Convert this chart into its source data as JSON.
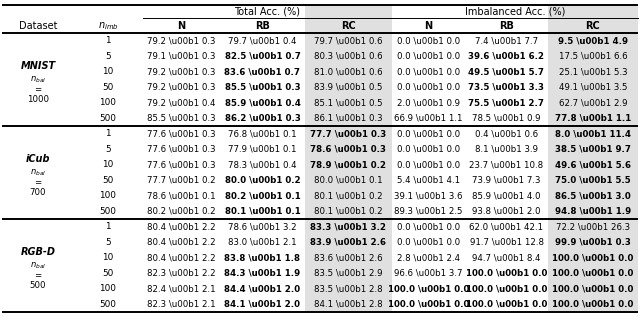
{
  "sections": [
    {
      "label": "MNIST",
      "sublabel_parts": [
        "$n_{bal}$",
        "=",
        "1000"
      ],
      "rows": [
        {
          "nimb": "1",
          "tN": "79.2 \\u00b1 0.3",
          "tRB": "79.7 \\u00b1 0.4",
          "tRC": "79.7 \\u00b1 0.6",
          "iN": "0.0 \\u00b1 0.0",
          "iRB": "7.4 \\u00b1 7.7",
          "iRC": "9.5 \\u00b1 4.9",
          "tN_b": false,
          "tRB_b": false,
          "tRC_b": false,
          "iN_b": false,
          "iRB_b": false,
          "iRC_b": true
        },
        {
          "nimb": "5",
          "tN": "79.1 \\u00b1 0.3",
          "tRB": "82.5 \\u00b1 0.7",
          "tRC": "80.3 \\u00b1 0.6",
          "iN": "0.0 \\u00b1 0.0",
          "iRB": "39.6 \\u00b1 6.2",
          "iRC": "17.5 \\u00b1 6.6",
          "tN_b": false,
          "tRB_b": true,
          "tRC_b": false,
          "iN_b": false,
          "iRB_b": true,
          "iRC_b": false
        },
        {
          "nimb": "10",
          "tN": "79.2 \\u00b1 0.3",
          "tRB": "83.6 \\u00b1 0.7",
          "tRC": "81.0 \\u00b1 0.6",
          "iN": "0.0 \\u00b1 0.0",
          "iRB": "49.5 \\u00b1 5.7",
          "iRC": "25.1 \\u00b1 5.3",
          "tN_b": false,
          "tRB_b": true,
          "tRC_b": false,
          "iN_b": false,
          "iRB_b": true,
          "iRC_b": false
        },
        {
          "nimb": "50",
          "tN": "79.2 \\u00b1 0.3",
          "tRB": "85.5 \\u00b1 0.3",
          "tRC": "83.9 \\u00b1 0.5",
          "iN": "0.0 \\u00b1 0.0",
          "iRB": "73.5 \\u00b1 3.3",
          "iRC": "49.1 \\u00b1 3.5",
          "tN_b": false,
          "tRB_b": true,
          "tRC_b": false,
          "iN_b": false,
          "iRB_b": true,
          "iRC_b": false
        },
        {
          "nimb": "100",
          "tN": "79.2 \\u00b1 0.4",
          "tRB": "85.9 \\u00b1 0.4",
          "tRC": "85.1 \\u00b1 0.5",
          "iN": "2.0 \\u00b1 0.9",
          "iRB": "75.5 \\u00b1 2.7",
          "iRC": "62.7 \\u00b1 2.9",
          "tN_b": false,
          "tRB_b": true,
          "tRC_b": false,
          "iN_b": false,
          "iRB_b": true,
          "iRC_b": false
        },
        {
          "nimb": "500",
          "tN": "85.5 \\u00b1 0.3",
          "tRB": "86.2 \\u00b1 0.3",
          "tRC": "86.1 \\u00b1 0.3",
          "iN": "66.9 \\u00b1 1.1",
          "iRB": "78.5 \\u00b1 0.9",
          "iRC": "77.8 \\u00b1 1.1",
          "tN_b": false,
          "tRB_b": true,
          "tRC_b": false,
          "iN_b": false,
          "iRB_b": false,
          "iRC_b": true
        }
      ]
    },
    {
      "label": "iCub",
      "sublabel_parts": [
        "$n_{bal}$",
        "=",
        "700"
      ],
      "rows": [
        {
          "nimb": "1",
          "tN": "77.6 \\u00b1 0.3",
          "tRB": "76.8 \\u00b1 0.1",
          "tRC": "77.7 \\u00b1 0.3",
          "iN": "0.0 \\u00b1 0.0",
          "iRB": "0.4 \\u00b1 0.6",
          "iRC": "8.0 \\u00b1 11.4",
          "tN_b": false,
          "tRB_b": false,
          "tRC_b": true,
          "iN_b": false,
          "iRB_b": false,
          "iRC_b": true
        },
        {
          "nimb": "5",
          "tN": "77.6 \\u00b1 0.3",
          "tRB": "77.9 \\u00b1 0.1",
          "tRC": "78.6 \\u00b1 0.3",
          "iN": "0.0 \\u00b1 0.0",
          "iRB": "8.1 \\u00b1 3.9",
          "iRC": "38.5 \\u00b1 9.7",
          "tN_b": false,
          "tRB_b": false,
          "tRC_b": true,
          "iN_b": false,
          "iRB_b": false,
          "iRC_b": true
        },
        {
          "nimb": "10",
          "tN": "77.6 \\u00b1 0.3",
          "tRB": "78.3 \\u00b1 0.4",
          "tRC": "78.9 \\u00b1 0.2",
          "iN": "0.0 \\u00b1 0.0",
          "iRB": "23.7 \\u00b1 10.8",
          "iRC": "49.6 \\u00b1 5.6",
          "tN_b": false,
          "tRB_b": false,
          "tRC_b": true,
          "iN_b": false,
          "iRB_b": false,
          "iRC_b": true
        },
        {
          "nimb": "50",
          "tN": "77.7 \\u00b1 0.2",
          "tRB": "80.0 \\u00b1 0.2",
          "tRC": "80.0 \\u00b1 0.1",
          "iN": "5.4 \\u00b1 4.1",
          "iRB": "73.9 \\u00b1 7.3",
          "iRC": "75.0 \\u00b1 5.5",
          "tN_b": false,
          "tRB_b": true,
          "tRC_b": false,
          "iN_b": false,
          "iRB_b": false,
          "iRC_b": true
        },
        {
          "nimb": "100",
          "tN": "78.6 \\u00b1 0.1",
          "tRB": "80.2 \\u00b1 0.1",
          "tRC": "80.1 \\u00b1 0.2",
          "iN": "39.1 \\u00b1 3.6",
          "iRB": "85.9 \\u00b1 4.0",
          "iRC": "86.5 \\u00b1 3.0",
          "tN_b": false,
          "tRB_b": true,
          "tRC_b": false,
          "iN_b": false,
          "iRB_b": false,
          "iRC_b": true
        },
        {
          "nimb": "500",
          "tN": "80.2 \\u00b1 0.2",
          "tRB": "80.1 \\u00b1 0.1",
          "tRC": "80.1 \\u00b1 0.2",
          "iN": "89.3 \\u00b1 2.5",
          "iRB": "93.8 \\u00b1 2.0",
          "iRC": "94.8 \\u00b1 1.9",
          "tN_b": false,
          "tRB_b": true,
          "tRC_b": false,
          "iN_b": false,
          "iRB_b": false,
          "iRC_b": true
        }
      ]
    },
    {
      "label": "RGB-D",
      "sublabel_parts": [
        "$n_{bal}$",
        "=",
        "500"
      ],
      "rows": [
        {
          "nimb": "1",
          "tN": "80.4 \\u00b1 2.2",
          "tRB": "78.6 \\u00b1 3.2",
          "tRC": "83.3 \\u00b1 3.2",
          "iN": "0.0 \\u00b1 0.0",
          "iRB": "62.0 \\u00b1 42.1",
          "iRC": "72.2 \\u00b1 26.3",
          "tN_b": false,
          "tRB_b": false,
          "tRC_b": true,
          "iN_b": false,
          "iRB_b": false,
          "iRC_b": false
        },
        {
          "nimb": "5",
          "tN": "80.4 \\u00b1 2.2",
          "tRB": "83.0 \\u00b1 2.1",
          "tRC": "83.9 \\u00b1 2.6",
          "iN": "0.0 \\u00b1 0.0",
          "iRB": "91.7 \\u00b1 12.8",
          "iRC": "99.9 \\u00b1 0.3",
          "tN_b": false,
          "tRB_b": false,
          "tRC_b": true,
          "iN_b": false,
          "iRB_b": false,
          "iRC_b": true
        },
        {
          "nimb": "10",
          "tN": "80.4 \\u00b1 2.2",
          "tRB": "83.8 \\u00b1 1.8",
          "tRC": "83.6 \\u00b1 2.6",
          "iN": "2.8 \\u00b1 2.4",
          "iRB": "94.7 \\u00b1 8.4",
          "iRC": "100.0 \\u00b1 0.0",
          "tN_b": false,
          "tRB_b": true,
          "tRC_b": false,
          "iN_b": false,
          "iRB_b": false,
          "iRC_b": true
        },
        {
          "nimb": "50",
          "tN": "82.3 \\u00b1 2.2",
          "tRB": "84.3 \\u00b1 1.9",
          "tRC": "83.5 \\u00b1 2.9",
          "iN": "96.6 \\u00b1 3.7",
          "iRB": "100.0 \\u00b1 0.0",
          "iRC": "100.0 \\u00b1 0.0",
          "tN_b": false,
          "tRB_b": true,
          "tRC_b": false,
          "iN_b": false,
          "iRB_b": true,
          "iRC_b": true
        },
        {
          "nimb": "100",
          "tN": "82.4 \\u00b1 2.1",
          "tRB": "84.4 \\u00b1 2.0",
          "tRC": "83.5 \\u00b1 2.8",
          "iN": "100.0 \\u00b1 0.0",
          "iRB": "100.0 \\u00b1 0.0",
          "iRC": "100.0 \\u00b1 0.0",
          "tN_b": false,
          "tRB_b": true,
          "tRC_b": false,
          "iN_b": true,
          "iRB_b": true,
          "iRC_b": true
        },
        {
          "nimb": "500",
          "tN": "82.3 \\u00b1 2.1",
          "tRB": "84.1 \\u00b1 2.0",
          "tRC": "84.1 \\u00b1 2.8",
          "iN": "100.0 \\u00b1 0.0",
          "iRB": "100.0 \\u00b1 0.0",
          "iRC": "100.0 \\u00b1 0.0",
          "tN_b": false,
          "tRB_b": true,
          "tRC_b": false,
          "iN_b": true,
          "iRB_b": true,
          "iRC_b": true
        }
      ]
    }
  ]
}
